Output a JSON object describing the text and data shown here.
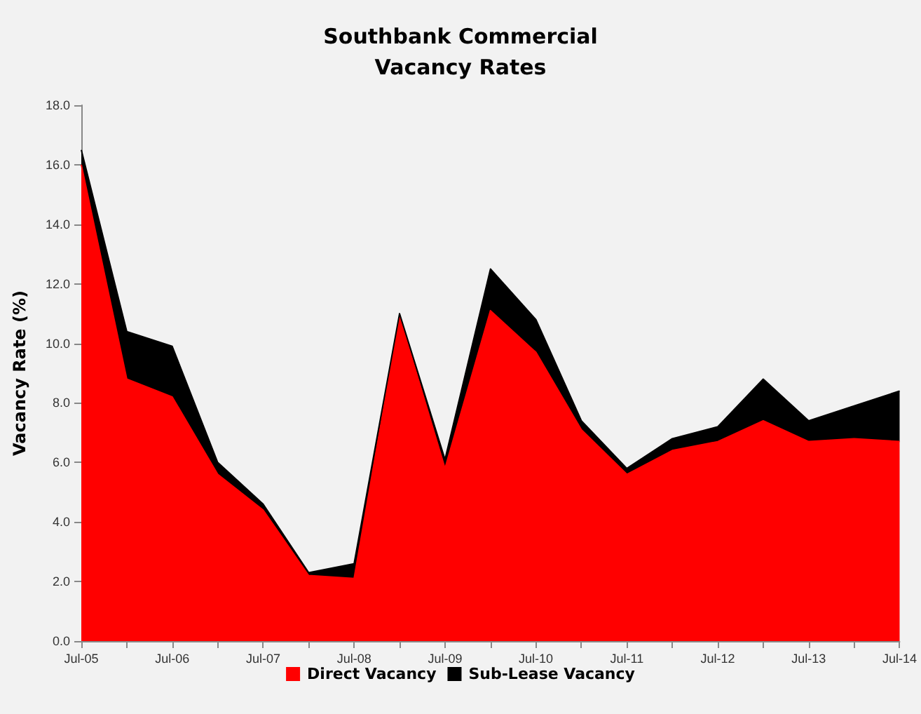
{
  "chart_data": {
    "type": "area",
    "title": "Southbank Commercial\nVacancy Rates",
    "ylabel": "Vacancy Rate (%)",
    "stacked": true,
    "grid": false,
    "legend": "bottom",
    "categories": [
      "Jul-05",
      null,
      "Jul-06",
      null,
      "Jul-07",
      null,
      "Jul-08",
      null,
      "Jul-09",
      null,
      "Jul-10",
      null,
      "Jul-11",
      null,
      "Jul-12",
      null,
      "Jul-13",
      null,
      "Jul-14"
    ],
    "series": [
      {
        "name": "Direct Vacancy",
        "color": "#ff0000",
        "values": [
          16.0,
          8.8,
          8.2,
          5.6,
          4.4,
          2.2,
          2.1,
          10.9,
          5.8,
          11.1,
          9.7,
          7.1,
          5.6,
          6.4,
          6.7,
          7.4,
          6.7,
          6.8,
          6.7
        ]
      },
      {
        "name": "Sub-Lease Vacancy",
        "color": "#000000",
        "values": [
          0.5,
          1.6,
          1.7,
          0.4,
          0.2,
          0.1,
          0.5,
          0.1,
          0.3,
          1.4,
          1.1,
          0.3,
          0.2,
          0.4,
          0.5,
          1.4,
          0.7,
          1.1,
          1.7
        ]
      }
    ],
    "ylim": [
      0,
      18
    ],
    "yticks": [
      {
        "value": 0,
        "label": "0.0"
      },
      {
        "value": 2,
        "label": "2.0"
      },
      {
        "value": 4,
        "label": "4.0"
      },
      {
        "value": 6,
        "label": "6.0"
      },
      {
        "value": 8,
        "label": "8.0"
      },
      {
        "value": 10,
        "label": "10.0"
      },
      {
        "value": 12,
        "label": "12.0"
      },
      {
        "value": 14,
        "label": "14.0"
      },
      {
        "value": 16,
        "label": "16.0"
      },
      {
        "value": 18,
        "label": "18.0"
      }
    ]
  }
}
